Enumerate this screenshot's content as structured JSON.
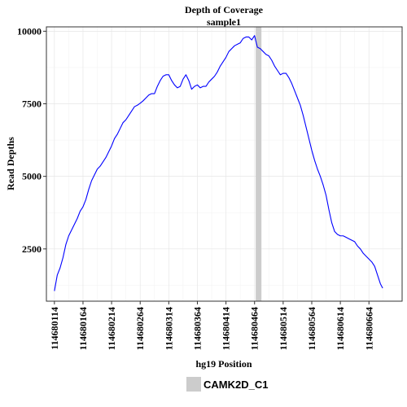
{
  "chart_data": {
    "type": "line",
    "title": "Depth of Coverage",
    "subtitle": "sample1",
    "xlabel": "hg19 Position",
    "ylabel": "Read Depths",
    "xlim": [
      114680100,
      114680722
    ],
    "ylim": [
      700,
      10150
    ],
    "x_ticks": [
      114680114,
      114680164,
      114680214,
      114680264,
      114680314,
      114680364,
      114680414,
      114680464,
      114680514,
      114680564,
      114680614,
      114680664
    ],
    "x_tick_labels": [
      "114680114",
      "114680164",
      "114680214",
      "114680264",
      "114680314",
      "114680364",
      "114680414",
      "114680464",
      "114680514",
      "114680564",
      "114680614",
      "114680664"
    ],
    "y_ticks": [
      2500,
      5000,
      7500,
      10000
    ],
    "y_tick_labels": [
      "2500",
      "5000",
      "7500",
      "10000"
    ],
    "grid": true,
    "legend_position": "bottom",
    "series": [
      {
        "color": "#0000ff",
        "x": [
          114680114,
          114680119,
          114680124,
          114680129,
          114680134,
          114680139,
          114680144,
          114680149,
          114680154,
          114680159,
          114680164,
          114680169,
          114680174,
          114680179,
          114680184,
          114680189,
          114680194,
          114680199,
          114680204,
          114680209,
          114680214,
          114680219,
          114680224,
          114680229,
          114680234,
          114680239,
          114680244,
          114680249,
          114680254,
          114680259,
          114680264,
          114680269,
          114680274,
          114680279,
          114680284,
          114680289,
          114680294,
          114680299,
          114680304,
          114680309,
          114680314,
          114680319,
          114680324,
          114680329,
          114680334,
          114680339,
          114680344,
          114680349,
          114680354,
          114680359,
          114680364,
          114680369,
          114680374,
          114680379,
          114680384,
          114680389,
          114680394,
          114680399,
          114680404,
          114680409,
          114680414,
          114680419,
          114680424,
          114680429,
          114680434,
          114680439,
          114680444,
          114680449,
          114680454,
          114680459,
          114680464,
          114680467,
          114680469,
          114680474,
          114680479,
          114680484,
          114680489,
          114680494,
          114680499,
          114680504,
          114680509,
          114680514,
          114680519,
          114680524,
          114680529,
          114680534,
          114680539,
          114680544,
          114680549,
          114680554,
          114680559,
          114680564,
          114680569,
          114680574,
          114680579,
          114680584,
          114680589,
          114680594,
          114680599,
          114680604,
          114680609,
          114680614,
          114680619,
          114680624,
          114680629,
          114680634,
          114680639,
          114680644,
          114680649,
          114680654,
          114680659,
          114680664,
          114680669,
          114680674,
          114680679,
          114680684,
          114680688
        ],
        "y": [
          1050,
          1600,
          1850,
          2200,
          2650,
          2950,
          3150,
          3350,
          3550,
          3800,
          3950,
          4200,
          4550,
          4850,
          5050,
          5250,
          5350,
          5500,
          5650,
          5850,
          6050,
          6300,
          6450,
          6650,
          6850,
          6950,
          7100,
          7250,
          7400,
          7450,
          7520,
          7600,
          7700,
          7800,
          7850,
          7850,
          8100,
          8300,
          8450,
          8500,
          8500,
          8300,
          8150,
          8050,
          8100,
          8350,
          8500,
          8300,
          8000,
          8100,
          8150,
          8050,
          8100,
          8100,
          8250,
          8350,
          8450,
          8600,
          8800,
          8950,
          9100,
          9300,
          9400,
          9500,
          9550,
          9600,
          9750,
          9800,
          9800,
          9700,
          9850,
          9600,
          9450,
          9400,
          9300,
          9200,
          9150,
          9000,
          8800,
          8650,
          8500,
          8550,
          8550,
          8400,
          8200,
          7950,
          7700,
          7450,
          7100,
          6700,
          6300,
          5900,
          5550,
          5250,
          5000,
          4700,
          4350,
          3850,
          3400,
          3100,
          3000,
          2950,
          2950,
          2900,
          2850,
          2800,
          2750,
          2600,
          2500,
          2350,
          2250,
          2150,
          2050,
          1900,
          1600,
          1300,
          1150
        ]
      }
    ],
    "highlight_regions": [
      {
        "name": "CAMK2D_C1",
        "x_start": 114680466,
        "x_end": 114680476,
        "color": "#cccccc"
      }
    ]
  }
}
